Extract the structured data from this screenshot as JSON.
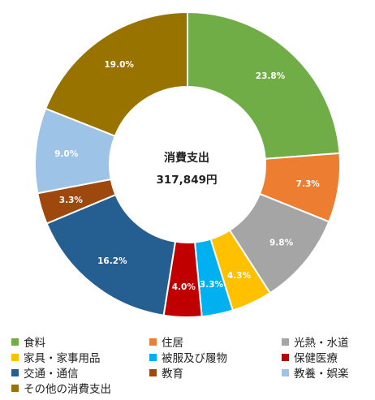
{
  "chart_data": {
    "type": "pie",
    "center_title": "消費支出",
    "center_total": "317,849円",
    "legend_position": "bottom",
    "slices": [
      {
        "name": "食料",
        "value": 23.8,
        "label": "23.8%",
        "color": "#70AD47"
      },
      {
        "name": "住居",
        "value": 7.3,
        "label": "7.3%",
        "color": "#ED7D31"
      },
      {
        "name": "光熱・水道",
        "value": 9.8,
        "label": "9.8%",
        "color": "#A5A5A5"
      },
      {
        "name": "家具・家事用品",
        "value": 4.3,
        "label": "4.3%",
        "color": "#FFC000"
      },
      {
        "name": "被服及び履物",
        "value": 3.3,
        "label": "3.3%",
        "color": "#00B0F0"
      },
      {
        "name": "保健医療",
        "value": 4.0,
        "label": "4.0%",
        "color": "#C00000"
      },
      {
        "name": "交通・通信",
        "value": 16.2,
        "label": "16.2%",
        "color": "#255E91"
      },
      {
        "name": "教育",
        "value": 3.3,
        "label": "3.3%",
        "color": "#9E480E"
      },
      {
        "name": "教養・娯楽",
        "value": 9.0,
        "label": "9.0%",
        "color": "#9DC3E6"
      },
      {
        "name": "その他の消費支出",
        "value": 19.0,
        "label": "19.0%",
        "color": "#997300"
      }
    ]
  }
}
